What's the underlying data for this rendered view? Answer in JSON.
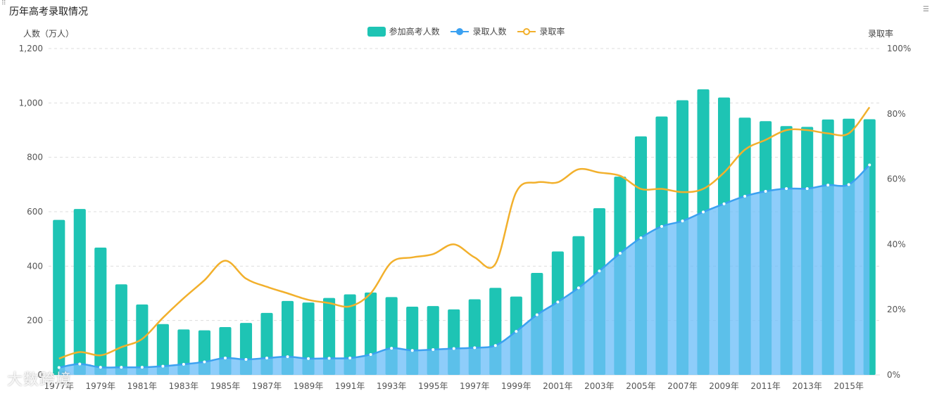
{
  "title": "历年高考录取情况",
  "watermark": "大数跨境",
  "legend": {
    "exam": "参加高考人数",
    "admit": "录取人数",
    "rate": "录取率"
  },
  "colors": {
    "bar": "#1ec4b4",
    "admitLine": "#3ba1f1",
    "admitFill": "#6ebff8",
    "rate": "#f2b02c",
    "grid": "#dddddd"
  },
  "chart_data": {
    "type": "bar",
    "title": "历年高考录取情况",
    "ylabel": "人数（万人）",
    "y2label": "录取率",
    "ylim": [
      0,
      1200
    ],
    "y2lim": [
      0,
      100
    ],
    "yticks": [
      "0",
      "200",
      "400",
      "600",
      "800",
      "1,000",
      "1,200"
    ],
    "y2ticks": [
      "0%",
      "20%",
      "40%",
      "60%",
      "80%",
      "100%"
    ],
    "categories": [
      "1977年",
      "1978年",
      "1979年",
      "1980年",
      "1981年",
      "1982年",
      "1983年",
      "1984年",
      "1985年",
      "1986年",
      "1987年",
      "1988年",
      "1989年",
      "1990年",
      "1991年",
      "1992年",
      "1993年",
      "1994年",
      "1995年",
      "1996年",
      "1997年",
      "1998年",
      "1999年",
      "2000年",
      "2001年",
      "2002年",
      "2003年",
      "2004年",
      "2005年",
      "2006年",
      "2007年",
      "2008年",
      "2009年",
      "2010年",
      "2011年",
      "2012年",
      "2013年",
      "2014年",
      "2015年",
      "2016年"
    ],
    "xticks_shown": [
      "1977年",
      "1979年",
      "1981年",
      "1983年",
      "1985年",
      "1987年",
      "1989年",
      "1991年",
      "1993年",
      "1995年",
      "1997年",
      "1999年",
      "2001年",
      "2003年",
      "2005年",
      "2007年",
      "2009年",
      "2011年",
      "2013年",
      "2015年"
    ],
    "series": [
      {
        "name": "参加高考人数",
        "type": "bar",
        "values": [
          570,
          610,
          468,
          333,
          259,
          187,
          167,
          164,
          176,
          191,
          228,
          272,
          266,
          283,
          296,
          303,
          286,
          251,
          253,
          241,
          278,
          320,
          288,
          375,
          454,
          510,
          613,
          729,
          877,
          950,
          1010,
          1050,
          1020,
          946,
          933,
          915,
          912,
          939,
          942,
          940
        ]
      },
      {
        "name": "录取人数",
        "type": "area",
        "values": [
          27,
          40,
          28,
          28,
          28,
          32,
          39,
          48,
          62,
          57,
          62,
          67,
          60,
          61,
          62,
          75,
          98,
          90,
          93,
          97,
          100,
          108,
          160,
          221,
          268,
          320,
          382,
          447,
          504,
          546,
          566,
          599,
          629,
          657,
          675,
          685,
          685,
          698,
          700,
          772
        ]
      },
      {
        "name": "录取率",
        "type": "line",
        "axis": "right",
        "values": [
          5,
          7,
          6,
          8.5,
          11,
          17.5,
          23.5,
          29,
          35,
          29.5,
          27,
          25,
          23,
          22,
          21,
          25,
          34.5,
          36,
          37,
          40,
          36,
          34,
          56,
          59,
          59,
          63,
          62,
          61,
          57,
          57,
          56,
          57,
          62,
          69,
          72,
          75,
          75,
          74,
          74,
          82
        ]
      }
    ]
  }
}
